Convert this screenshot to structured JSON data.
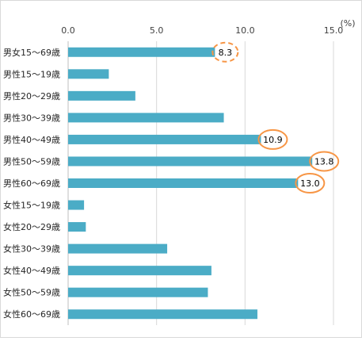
{
  "chart_data": {
    "type": "bar",
    "orientation": "horizontal",
    "unit": "(%)",
    "xlim": [
      0,
      15
    ],
    "x_ticks": [
      "0.0",
      "5.0",
      "10.0",
      "15.0"
    ],
    "categories": [
      "男女15～69歳",
      "男性15～19歳",
      "男性20～29歳",
      "男性30～39歳",
      "男性40～49歳",
      "男性50～59歳",
      "男性60～69歳",
      "女性15～19歳",
      "女性20～29歳",
      "女性30～39歳",
      "女性40～49歳",
      "女性50～59歳",
      "女性60～69歳"
    ],
    "values": [
      8.3,
      2.3,
      3.8,
      8.8,
      10.9,
      13.8,
      13.0,
      0.9,
      1.0,
      5.6,
      8.1,
      7.9,
      10.7
    ],
    "data_labels": [
      {
        "index": 0,
        "text": "8.3",
        "highlight": "dashed-circle"
      },
      {
        "index": 4,
        "text": "10.9",
        "highlight": "circle"
      },
      {
        "index": 5,
        "text": "13.8",
        "highlight": "circle"
      },
      {
        "index": 6,
        "text": "13.0",
        "highlight": "circle"
      }
    ],
    "grid": "vertical",
    "bar_color": "#4bacc6",
    "highlight_color": "#f79646"
  }
}
